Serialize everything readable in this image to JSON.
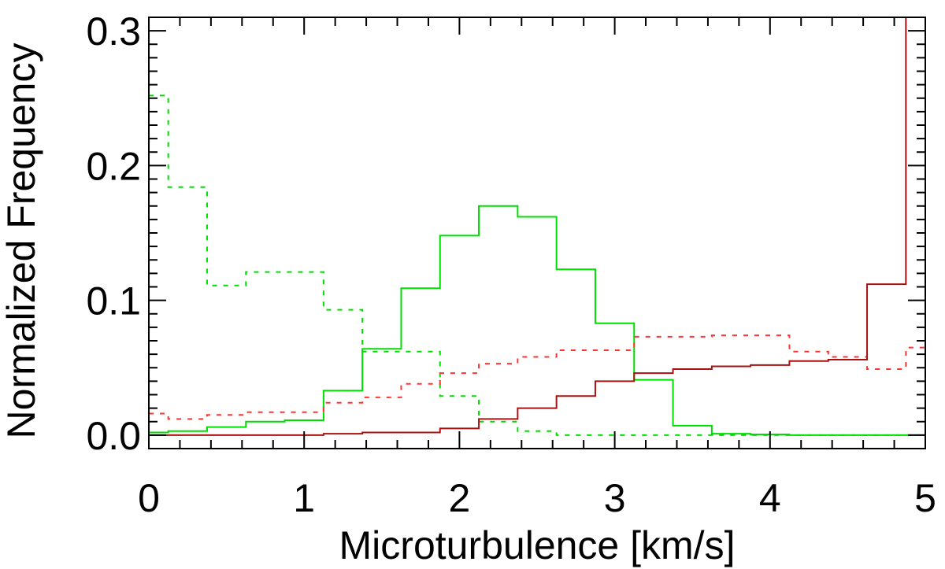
{
  "chart_data": {
    "type": "line",
    "title": "",
    "xlabel": "Microturbulence [km/s]",
    "ylabel": "Normalized Frequency",
    "xlim": [
      0,
      5
    ],
    "ylim": [
      -0.01,
      0.31
    ],
    "x_ticks": [
      0,
      1,
      2,
      3,
      4,
      5
    ],
    "x_tick_labels": [
      "0",
      "1",
      "2",
      "3",
      "4",
      "5"
    ],
    "y_ticks": [
      0.0,
      0.1,
      0.2,
      0.3
    ],
    "y_tick_labels": [
      "0.0",
      "0.1",
      "0.2",
      "0.3"
    ],
    "grid": false,
    "bin_edges": [
      0,
      0.125,
      0.375,
      0.625,
      0.875,
      1.125,
      1.375,
      1.625,
      1.875,
      2.125,
      2.375,
      2.625,
      2.875,
      3.125,
      3.375,
      3.625,
      3.875,
      4.125,
      4.375,
      4.625,
      4.875,
      5.0
    ],
    "series": [
      {
        "color": "#00dd00",
        "linestyle": "dotted",
        "step": true,
        "values": [
          0.252,
          0.184,
          0.111,
          0.121,
          0.121,
          0.093,
          0.062,
          0.062,
          0.029,
          0.01,
          0.003,
          0.0,
          0.0,
          0.0,
          0.0,
          0.0,
          0.0,
          0.0,
          0.0,
          0.0,
          0.0
        ]
      },
      {
        "color": "#00dd00",
        "linestyle": "solid",
        "step": true,
        "values": [
          0.002,
          0.003,
          0.006,
          0.01,
          0.011,
          0.033,
          0.064,
          0.109,
          0.148,
          0.17,
          0.162,
          0.123,
          0.083,
          0.041,
          0.007,
          0.001,
          0.0005,
          0.0,
          0.0,
          0.0,
          0.0
        ]
      },
      {
        "color": "#ff3333",
        "linestyle": "dotted",
        "step": true,
        "values": [
          0.016,
          0.012,
          0.015,
          0.017,
          0.017,
          0.024,
          0.028,
          0.038,
          0.046,
          0.053,
          0.058,
          0.063,
          0.063,
          0.073,
          0.073,
          0.074,
          0.074,
          0.062,
          0.058,
          0.049,
          0.065
        ]
      },
      {
        "color": "#aa1111",
        "linestyle": "solid",
        "step": true,
        "values": [
          0.0,
          0.0,
          0.0,
          0.0,
          0.0,
          0.001,
          0.002,
          0.002,
          0.005,
          0.012,
          0.02,
          0.029,
          0.04,
          0.046,
          0.049,
          0.051,
          0.052,
          0.055,
          0.056,
          0.112,
          0.31
        ]
      }
    ]
  }
}
